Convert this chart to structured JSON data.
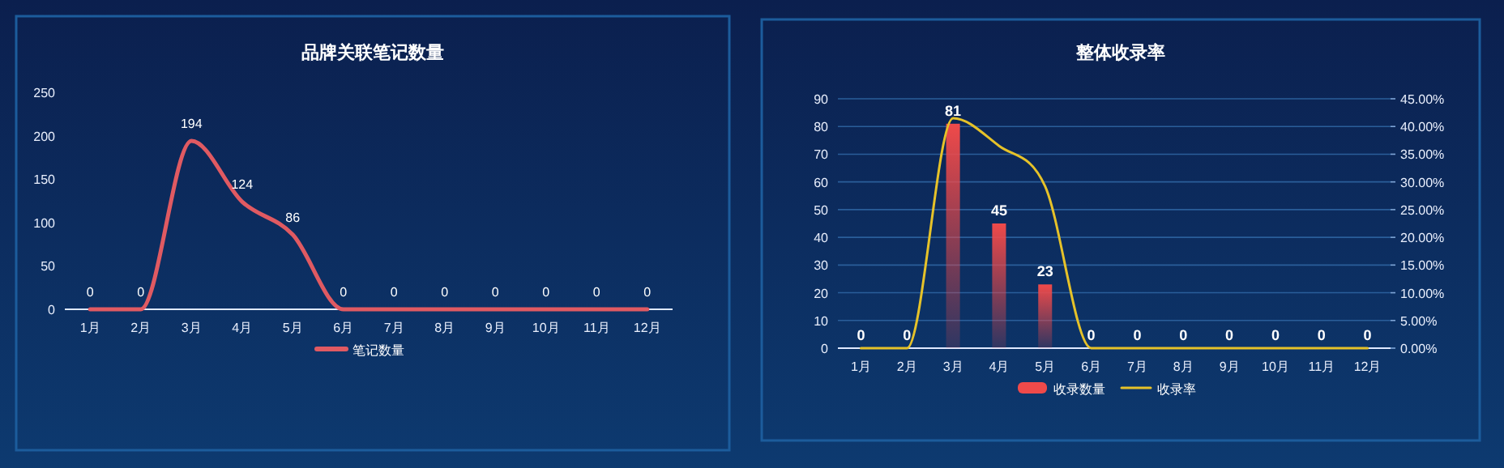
{
  "chart_data": [
    {
      "type": "line",
      "title": "品牌关联笔记数量",
      "categories": [
        "1月",
        "2月",
        "3月",
        "4月",
        "5月",
        "6月",
        "7月",
        "8月",
        "9月",
        "10月",
        "11月",
        "12月"
      ],
      "series": [
        {
          "name": "笔记数量",
          "color": "#e05a62",
          "values": [
            0,
            0,
            194,
            124,
            86,
            0,
            0,
            0,
            0,
            0,
            0,
            0
          ]
        }
      ],
      "ylim": [
        0,
        250
      ],
      "yticks": [
        0,
        50,
        100,
        150,
        200,
        250
      ],
      "data_labels": true,
      "legend": "bottom",
      "marker": "none",
      "line_style": "solid"
    },
    {
      "type": "bar",
      "title": "整体收录率",
      "categories": [
        "1月",
        "2月",
        "3月",
        "4月",
        "5月",
        "6月",
        "7月",
        "8月",
        "9月",
        "10月",
        "11月",
        "12月"
      ],
      "series": [
        {
          "name": "收录数量",
          "color": "#ef4a4a",
          "values": [
            0,
            0,
            81,
            45,
            23,
            0,
            0,
            0,
            0,
            0,
            0,
            0
          ],
          "value_labels": [
            "0",
            "0",
            "81",
            "45",
            "23",
            "0",
            "0",
            "0",
            "0",
            "0",
            "0",
            "0"
          ]
        },
        {
          "name": "收录率",
          "type": "line",
          "axis": "y2",
          "color": "#e6c229",
          "values": [
            0,
            0,
            41.5,
            36.5,
            29.2,
            0,
            0,
            0,
            0,
            0,
            0,
            0
          ]
        }
      ],
      "ylim": [
        0,
        90
      ],
      "yticks": [
        0,
        10,
        20,
        30,
        40,
        50,
        60,
        70,
        80,
        90
      ],
      "y2lim": [
        0,
        45
      ],
      "y2ticks": [
        {
          "value": 0,
          "label": "0.00%"
        },
        {
          "value": 5,
          "label": "5.00%"
        },
        {
          "value": 10,
          "label": "10.00%"
        },
        {
          "value": 15,
          "label": "15.00%"
        },
        {
          "value": 20,
          "label": "20.00%"
        },
        {
          "value": 25,
          "label": "25.00%"
        },
        {
          "value": 30,
          "label": "30.00%"
        },
        {
          "value": 35,
          "label": "35.00%"
        },
        {
          "value": 40,
          "label": "40.00%"
        },
        {
          "value": 45,
          "label": "45.00%"
        }
      ],
      "grid": "y",
      "legend": "bottom"
    }
  ]
}
